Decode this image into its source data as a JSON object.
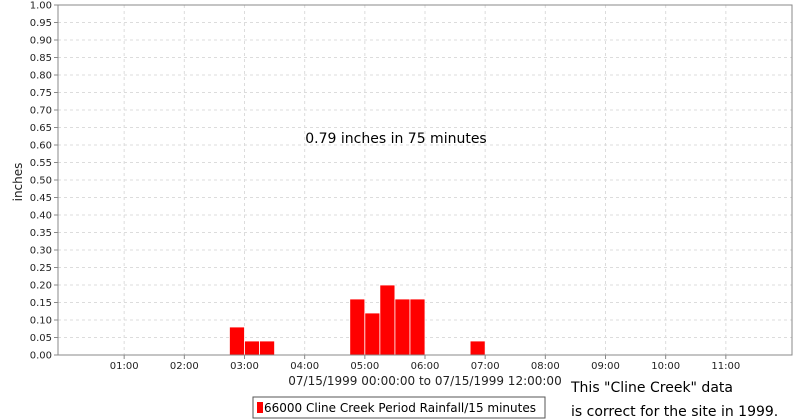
{
  "chart_data": {
    "type": "bar",
    "xlabel": "07/15/1999 00:00:00 to 07/15/1999 12:00:00",
    "ylabel": "inches",
    "ylim": [
      0,
      1.0
    ],
    "xlim_minutes": [
      0,
      720
    ],
    "y_ticks": [
      "0.00",
      "0.05",
      "0.10",
      "0.15",
      "0.20",
      "0.25",
      "0.30",
      "0.35",
      "0.40",
      "0.45",
      "0.50",
      "0.55",
      "0.60",
      "0.65",
      "0.70",
      "0.75",
      "0.80",
      "0.85",
      "0.90",
      "0.95",
      "1.00"
    ],
    "x_ticks": [
      {
        "label": "01:00",
        "minutes": 60
      },
      {
        "label": "02:00",
        "minutes": 120
      },
      {
        "label": "03:00",
        "minutes": 180
      },
      {
        "label": "04:00",
        "minutes": 240
      },
      {
        "label": "05:00",
        "minutes": 300
      },
      {
        "label": "06:00",
        "minutes": 360
      },
      {
        "label": "07:00",
        "minutes": 420
      },
      {
        "label": "08:00",
        "minutes": 480
      },
      {
        "label": "09:00",
        "minutes": 540
      },
      {
        "label": "10:00",
        "minutes": 600
      },
      {
        "label": "11:00",
        "minutes": 660
      }
    ],
    "grid": true,
    "bar_color": "#ff0000",
    "interval_minutes": 15,
    "series": [
      {
        "name": "66000 Cline Creek Period Rainfall/15 minutes",
        "points": [
          {
            "time": "02:45",
            "start_minutes": 165,
            "value": 0.08
          },
          {
            "time": "03:00",
            "start_minutes": 180,
            "value": 0.04
          },
          {
            "time": "03:15",
            "start_minutes": 195,
            "value": 0.04
          },
          {
            "time": "04:45",
            "start_minutes": 285,
            "value": 0.16
          },
          {
            "time": "05:00",
            "start_minutes": 300,
            "value": 0.12
          },
          {
            "time": "05:15",
            "start_minutes": 315,
            "value": 0.2
          },
          {
            "time": "05:30",
            "start_minutes": 330,
            "value": 0.16
          },
          {
            "time": "05:45",
            "start_minutes": 345,
            "value": 0.16
          },
          {
            "time": "06:45",
            "start_minutes": 405,
            "value": 0.04
          }
        ]
      }
    ],
    "annotation": "0.79 inches in 75 minutes",
    "legend_position": "bottom"
  },
  "note": {
    "line1": "This \"Cline Creek\" data",
    "line2": "is correct for the site in 1999."
  }
}
